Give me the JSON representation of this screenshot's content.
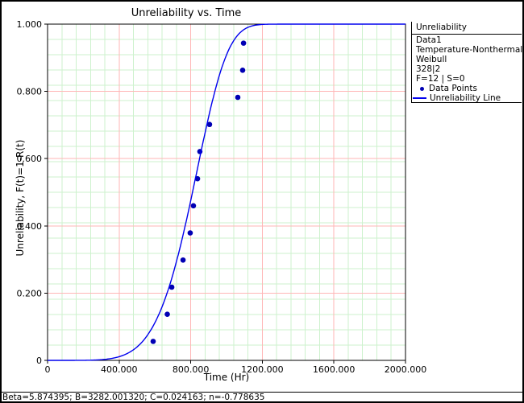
{
  "window": {
    "status_bar": "Beta=5.874395; B=3282.001320; C=0.024163; n=-0.778635"
  },
  "legend": {
    "header": "Unreliability",
    "lines": [
      "Data1",
      "Temperature-Nonthermal",
      "Weibull",
      "328|2",
      "F=12 | S=0"
    ],
    "data_points_label": "Data Points",
    "line_label": "Unreliability Line"
  },
  "chart_data": {
    "type": "scatter",
    "title": "Unreliability vs. Time",
    "xlabel": "Time (Hr)",
    "ylabel": "Unreliability, F(t)=1-R(t)",
    "xlim": [
      0,
      2000
    ],
    "ylim": [
      0,
      1
    ],
    "x_ticks": [
      0,
      400,
      800,
      1200,
      1600,
      2000
    ],
    "x_tick_labels": [
      "0",
      "400.000",
      "800.000",
      "1200.000",
      "1600.000",
      "2000.000"
    ],
    "y_ticks": [
      0,
      0.2,
      0.4,
      0.6,
      0.8,
      1.0
    ],
    "y_tick_labels": [
      "0",
      "0.200",
      "0.400",
      "0.600",
      "0.800",
      "1.000"
    ],
    "grid": {
      "major": true,
      "minor": true,
      "major_color": "#ffb6b6",
      "minor_color": "#cdf2cd",
      "minor_x_divisions": 25,
      "minor_y_divisions": 22
    },
    "legend_position": "top-right",
    "series": [
      {
        "name": "Data Points",
        "type": "scatter",
        "color": "#0000b4",
        "points": [
          [
            590,
            0.0565
          ],
          [
            669,
            0.1371
          ],
          [
            694,
            0.2177
          ],
          [
            757,
            0.2984
          ],
          [
            797,
            0.379
          ],
          [
            815,
            0.4597
          ],
          [
            838,
            0.5403
          ],
          [
            851,
            0.621
          ],
          [
            905,
            0.7016
          ],
          [
            1063,
            0.7823
          ],
          [
            1090,
            0.8629
          ],
          [
            1095,
            0.9435
          ]
        ]
      },
      {
        "name": "Unreliability Line",
        "type": "line",
        "color": "#0000ee",
        "model": "weibull_cdf",
        "params": {
          "beta": 5.874395,
          "eta": 862
        }
      }
    ]
  }
}
